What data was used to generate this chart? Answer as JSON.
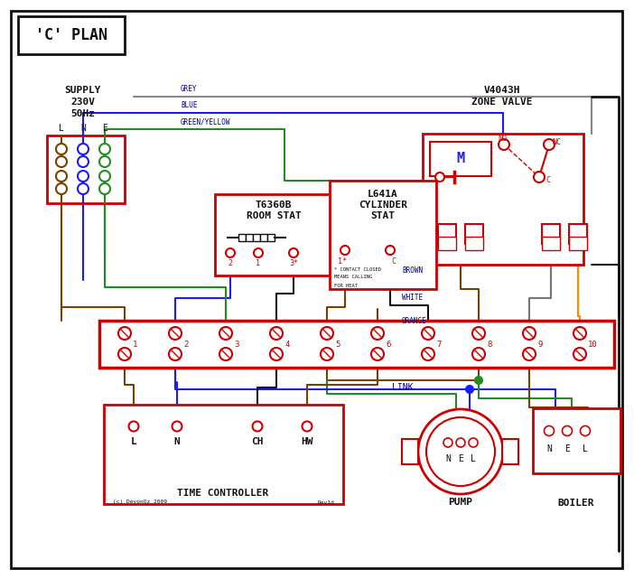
{
  "bg": "#ffffff",
  "RED": "#cc0000",
  "BLUE": "#1a1aff",
  "GREEN": "#228B22",
  "BROWN": "#7B3F00",
  "GREY": "#888888",
  "ORANGE": "#FF8C00",
  "BLACK": "#111111",
  "WHITE_W": "#777777",
  "DB": "#000080",
  "title": "'C' PLAN",
  "supply_lbl": [
    "SUPPLY",
    "230V",
    "50Hz"
  ],
  "lne": [
    "L",
    "N",
    "E"
  ],
  "zone_valve_lbl": [
    "V4043H",
    "ZONE VALVE"
  ],
  "room_stat_lbl": [
    "T6360B",
    "ROOM STAT"
  ],
  "cyl_stat_lbl": [
    "L641A",
    "CYLINDER",
    "STAT"
  ],
  "terminals": [
    "1",
    "2",
    "3",
    "4",
    "5",
    "6",
    "7",
    "8",
    "9",
    "10"
  ],
  "tc_lbl": "TIME CONTROLLER",
  "tc_terms": [
    "L",
    "N",
    "CH",
    "HW"
  ],
  "pump_lbl": "PUMP",
  "boiler_lbl": "BOILER",
  "nel": [
    "N",
    "E",
    "L"
  ],
  "link_lbl": "LINK",
  "copyright": "(c) DevonOz 2009",
  "rev": "Rev1d",
  "note": [
    "* CONTACT CLOSED",
    "MEANS CALLING",
    "FOR HEAT"
  ],
  "wire_lbl_grey": "GREY",
  "wire_lbl_blue": "BLUE",
  "wire_lbl_gy": "GREEN/YELLOW",
  "wire_lbl_brown": "BROWN",
  "wire_lbl_white": "WHITE",
  "wire_lbl_orange": "ORANGE"
}
